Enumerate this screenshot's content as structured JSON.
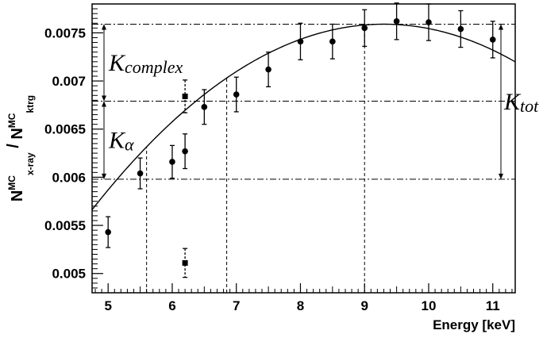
{
  "chart_data": {
    "type": "scatter",
    "xlabel": "Energy [keV]",
    "ylabel": {
      "n1": "N",
      "sup1": "MC",
      "sub1": "x-ray",
      "sep": " / ",
      "n2": "N",
      "sup2": "MC",
      "sub2": "ktrg"
    },
    "xlim": [
      4.75,
      11.35
    ],
    "ylim": [
      0.0048,
      0.0078
    ],
    "x_ticks": [
      5,
      6,
      7,
      8,
      9,
      10,
      11
    ],
    "x_tick_labels": [
      "5",
      "6",
      "7",
      "8",
      "9",
      "10",
      "11"
    ],
    "y_ticks": [
      0.005,
      0.0055,
      0.006,
      0.0065,
      0.007,
      0.0075
    ],
    "y_tick_labels": [
      "0.005",
      "0.0055",
      "0.006",
      "0.0065",
      "0.007",
      "0.0075"
    ],
    "grid": false,
    "series": [
      {
        "marker": "circle",
        "points": [
          {
            "x": 5.0,
            "y": 0.00543,
            "err": 0.00016
          },
          {
            "x": 5.5,
            "y": 0.00604,
            "err": 0.00016
          },
          {
            "x": 6.0,
            "y": 0.00616,
            "err": 0.00017
          },
          {
            "x": 6.2,
            "y": 0.00627,
            "err": 0.00018
          },
          {
            "x": 6.5,
            "y": 0.00673,
            "err": 0.00018
          },
          {
            "x": 7.0,
            "y": 0.00686,
            "err": 0.00018
          },
          {
            "x": 7.5,
            "y": 0.00712,
            "err": 0.00018
          },
          {
            "x": 8.0,
            "y": 0.00741,
            "err": 0.00019
          },
          {
            "x": 8.5,
            "y": 0.00741,
            "err": 0.00018
          },
          {
            "x": 9.0,
            "y": 0.00755,
            "err": 0.00019
          },
          {
            "x": 9.5,
            "y": 0.00762,
            "err": 0.00019
          },
          {
            "x": 10.0,
            "y": 0.00761,
            "err": 0.00019
          },
          {
            "x": 10.5,
            "y": 0.00754,
            "err": 0.00019
          },
          {
            "x": 11.0,
            "y": 0.00743,
            "err": 0.00019
          }
        ]
      },
      {
        "marker": "square",
        "errstyle": "dashed",
        "points": [
          {
            "x": 6.2,
            "y": 0.00684,
            "err": 0.00017
          },
          {
            "x": 6.2,
            "y": 0.00511,
            "err": 0.00015
          }
        ]
      }
    ],
    "fit_curve": {
      "type": "quadratic",
      "vertex_x": 9.3,
      "vertex_y": 0.00759,
      "a": -9.31e-05
    },
    "reference_lines": {
      "horizontal": [
        0.00598,
        0.00679,
        0.00759
      ],
      "vertical": [
        5.6,
        6.85,
        9.0
      ]
    },
    "annotations": [
      {
        "text": "K",
        "sub": "complex",
        "arrow_from": 0.00679,
        "arrow_to": 0.00759,
        "side": "left"
      },
      {
        "text": "K",
        "sub": "α",
        "arrow_from": 0.00598,
        "arrow_to": 0.00679,
        "side": "left"
      },
      {
        "text": "K",
        "sub": "tot",
        "arrow_from": 0.00598,
        "arrow_to": 0.00759,
        "side": "right"
      }
    ]
  }
}
